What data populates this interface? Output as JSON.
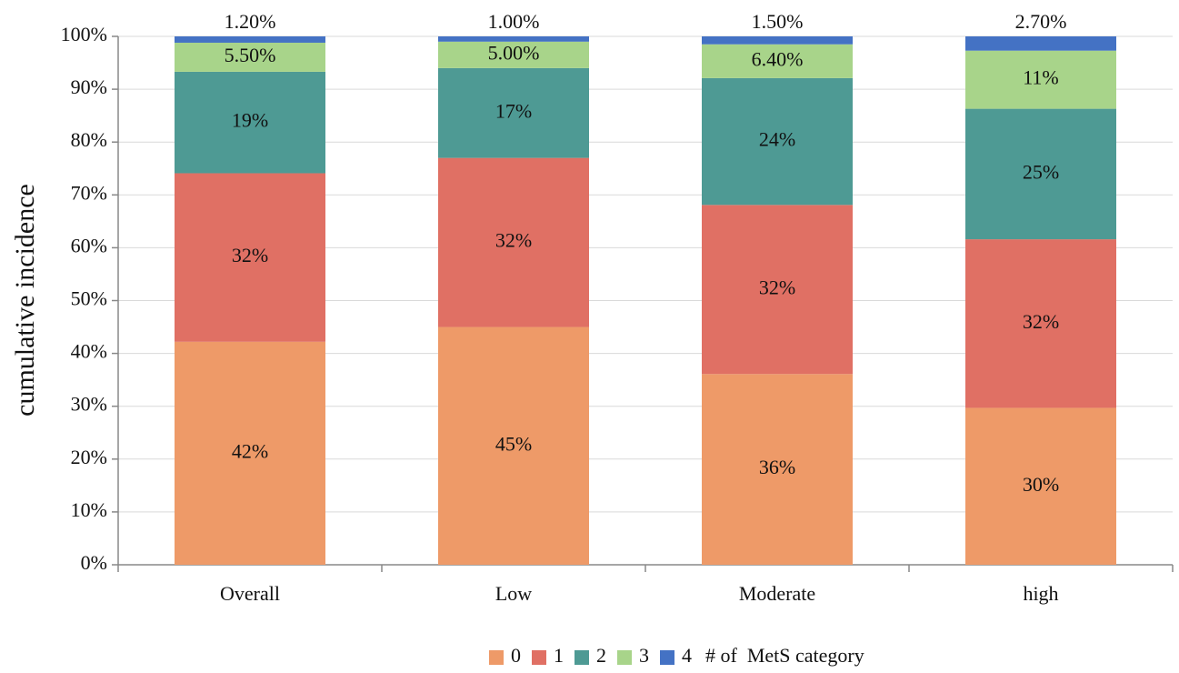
{
  "chart_data": {
    "type": "stacked_bar",
    "y_label": "cumulative incidence",
    "categories": [
      "Overall",
      "Low",
      "Moderate",
      "high"
    ],
    "series": [
      {
        "name": "0",
        "color": "#ee9a68",
        "values": [
          42.2,
          45,
          36.1,
          29.7
        ],
        "value_labels": [
          "42%",
          "45%",
          "36%",
          "30%"
        ]
      },
      {
        "name": "1",
        "color": "#e07064",
        "values": [
          31.9,
          32,
          32,
          31.9
        ],
        "value_labels": [
          "32%",
          "32%",
          "32%",
          "32%"
        ]
      },
      {
        "name": "2",
        "color": "#4e9a94",
        "values": [
          19.2,
          17,
          24,
          24.7
        ],
        "value_labels": [
          "19%",
          "17%",
          "24%",
          "25%"
        ]
      },
      {
        "name": "3",
        "color": "#a8d48a",
        "values": [
          5.5,
          5.0,
          6.4,
          11
        ],
        "value_labels": [
          "5.50%",
          "5.00%",
          "6.40%",
          "11%"
        ]
      },
      {
        "name": "4",
        "color": "#4472c4",
        "values": [
          1.2,
          1.0,
          1.5,
          2.7
        ],
        "value_labels": [
          "1.20%",
          "1.00%",
          "1.50%",
          "2.70%"
        ]
      }
    ],
    "legend_title": "# of  MetS category",
    "legend": "bottom",
    "ylim": [
      0,
      100
    ],
    "yticks": [
      {
        "value": 0,
        "label": "0%"
      },
      {
        "value": 10,
        "label": "10%"
      },
      {
        "value": 20,
        "label": "20%"
      },
      {
        "value": 30,
        "label": "30%"
      },
      {
        "value": 40,
        "label": "40%"
      },
      {
        "value": 50,
        "label": "50%"
      },
      {
        "value": 60,
        "label": "60%"
      },
      {
        "value": 70,
        "label": "70%"
      },
      {
        "value": 80,
        "label": "80%"
      },
      {
        "value": 90,
        "label": "90%"
      },
      {
        "value": 100,
        "label": "100%"
      }
    ],
    "grid": true
  }
}
